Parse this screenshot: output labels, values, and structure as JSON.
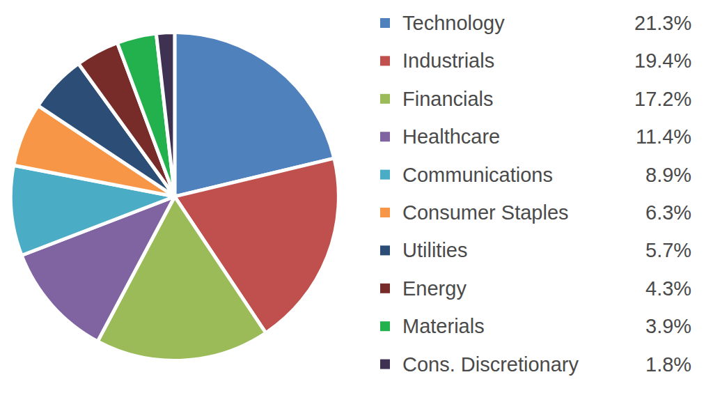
{
  "chart_data": {
    "type": "pie",
    "categories": [
      "Technology",
      "Industrials",
      "Financials",
      "Healthcare",
      "Communications",
      "Consumer Staples",
      "Utilities",
      "Energy",
      "Materials",
      "Cons. Discretionary"
    ],
    "values": [
      21.3,
      19.4,
      17.2,
      11.4,
      8.9,
      6.3,
      5.7,
      4.3,
      3.9,
      1.8
    ],
    "value_labels": [
      "21.3%",
      "19.4%",
      "17.2%",
      "11.4%",
      "8.9%",
      "6.3%",
      "5.7%",
      "4.3%",
      "3.9%",
      "1.8%"
    ],
    "colors": [
      "#4f81bd",
      "#c0504d",
      "#9bbb59",
      "#8064a2",
      "#4bacc6",
      "#f79646",
      "#2c4d75",
      "#772c2a",
      "#22b14c",
      "#3f3151"
    ],
    "legend": "right"
  }
}
